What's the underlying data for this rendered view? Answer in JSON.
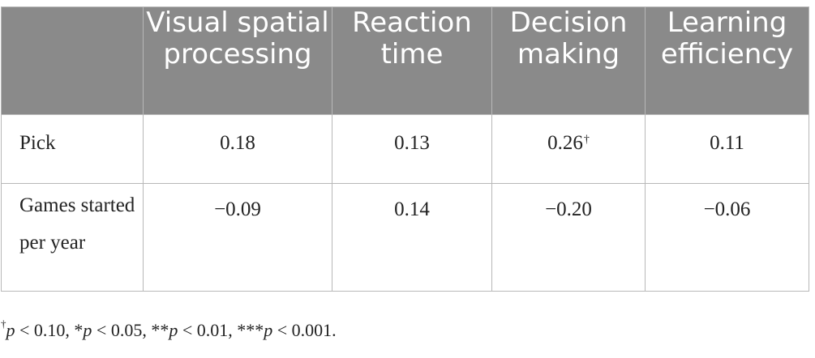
{
  "table": {
    "columns": [
      "",
      "Visual spatial processing",
      "Reaction time",
      "Decision making",
      "Learning efficiency"
    ],
    "rows": [
      {
        "label": "Pick",
        "values": [
          "0.18",
          "0.13",
          "0.26",
          "0.11"
        ],
        "marks": [
          "",
          "",
          "†",
          ""
        ]
      },
      {
        "label": "Games started per year",
        "values": [
          "−0.09",
          "0.14",
          "−0.20",
          "−0.06"
        ]
      }
    ]
  },
  "footnote": {
    "dagger": "†",
    "p_symbol": "p",
    "items": [
      " < 0.10, *",
      " < 0.05, **",
      " < 0.01, ***",
      " < 0.001."
    ]
  }
}
